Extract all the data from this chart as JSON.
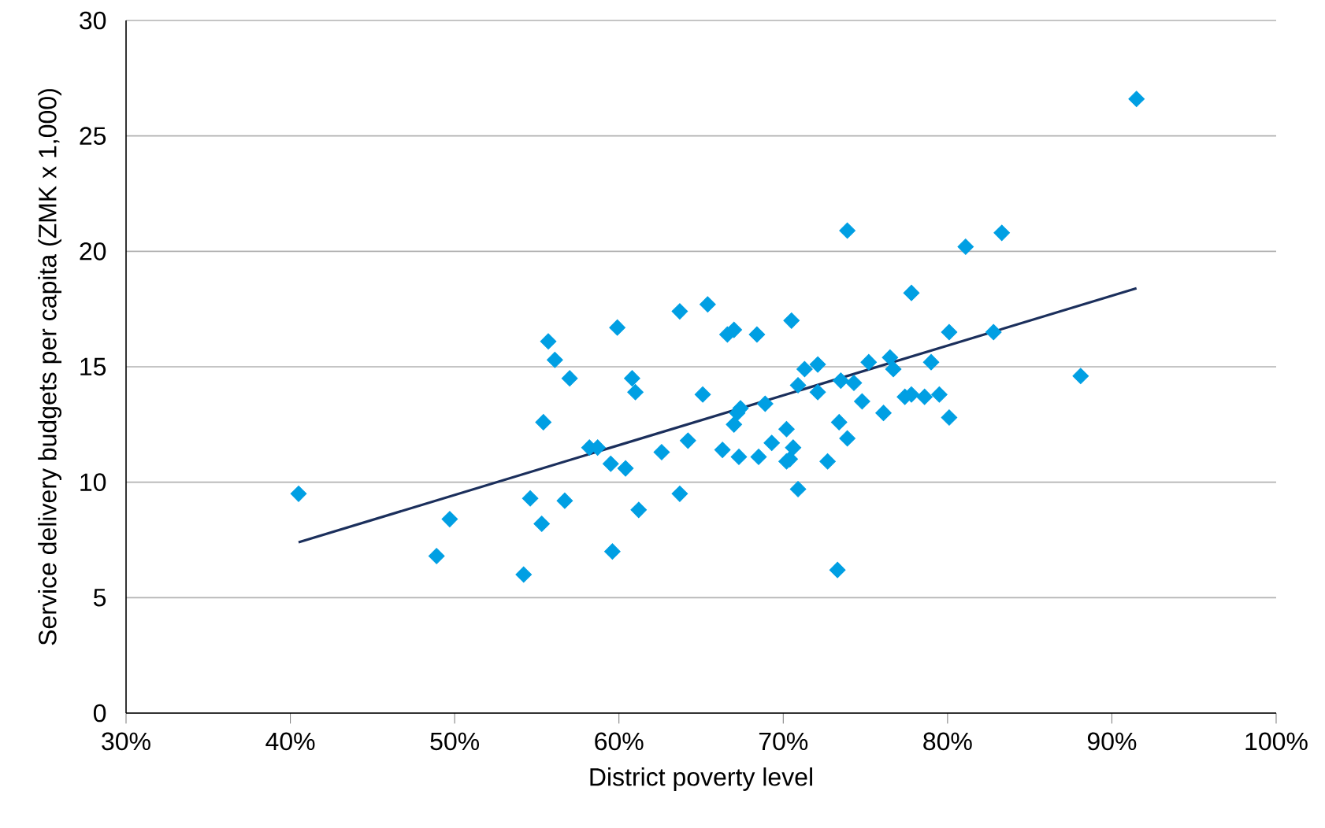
{
  "chart_data": {
    "type": "scatter",
    "xlabel": "District poverty level",
    "ylabel": "Service delivery budgets per capita (ZMK x 1,000)",
    "xlim": [
      30,
      100
    ],
    "ylim": [
      0,
      30
    ],
    "xticks": [
      {
        "value": 30,
        "label": "30%"
      },
      {
        "value": 40,
        "label": "40%"
      },
      {
        "value": 50,
        "label": "50%"
      },
      {
        "value": 60,
        "label": "60%"
      },
      {
        "value": 70,
        "label": "70%"
      },
      {
        "value": 80,
        "label": "80%"
      },
      {
        "value": 90,
        "label": "90%"
      },
      {
        "value": 100,
        "label": "100%"
      }
    ],
    "yticks": [
      0,
      5,
      10,
      15,
      20,
      25,
      30
    ],
    "grid": "y",
    "series": [
      {
        "color": "#009fe3",
        "marker": "diamond",
        "x": [
          40.5,
          48.9,
          49.7,
          54.2,
          54.6,
          55.3,
          55.4,
          55.7,
          56.1,
          56.7,
          57.0,
          58.2,
          58.7,
          59.5,
          59.6,
          59.9,
          60.4,
          60.8,
          61.0,
          61.2,
          62.6,
          63.7,
          63.7,
          64.2,
          65.1,
          65.4,
          66.3,
          66.6,
          67.0,
          67.0,
          67.2,
          67.4,
          67.3,
          68.4,
          68.5,
          68.9,
          69.3,
          70.2,
          70.2,
          70.4,
          70.5,
          70.6,
          70.9,
          70.9,
          71.3,
          72.1,
          72.1,
          72.7,
          73.3,
          73.4,
          73.5,
          73.9,
          73.9,
          74.3,
          74.8,
          75.2,
          76.1,
          76.5,
          76.7,
          77.4,
          77.8,
          77.8,
          78.6,
          79.0,
          79.5,
          80.1,
          80.1,
          81.1,
          82.8,
          83.3,
          88.1,
          91.5
        ],
        "values": [
          9.5,
          6.8,
          8.4,
          6.0,
          9.3,
          8.2,
          12.6,
          16.1,
          15.3,
          9.2,
          14.5,
          11.5,
          11.5,
          10.8,
          7.0,
          16.7,
          10.6,
          14.5,
          13.9,
          8.8,
          11.3,
          17.4,
          9.5,
          11.8,
          13.8,
          17.7,
          11.4,
          16.4,
          16.6,
          12.5,
          13.0,
          13.2,
          11.1,
          16.4,
          11.1,
          13.4,
          11.7,
          12.3,
          10.9,
          11.0,
          17.0,
          11.5,
          9.7,
          14.2,
          14.9,
          15.1,
          13.9,
          10.9,
          6.2,
          12.6,
          14.4,
          20.9,
          11.9,
          14.3,
          13.5,
          15.2,
          13.0,
          15.4,
          14.9,
          13.7,
          13.8,
          18.2,
          13.7,
          15.2,
          13.8,
          12.8,
          16.5,
          20.2,
          16.5,
          20.8,
          14.6,
          26.6
        ]
      },
      {
        "type": "line",
        "color": "#1b2f5c",
        "marker": "none",
        "line_style": "solid",
        "x": [
          40.5,
          91.5
        ],
        "values": [
          7.4,
          18.4
        ]
      }
    ]
  }
}
